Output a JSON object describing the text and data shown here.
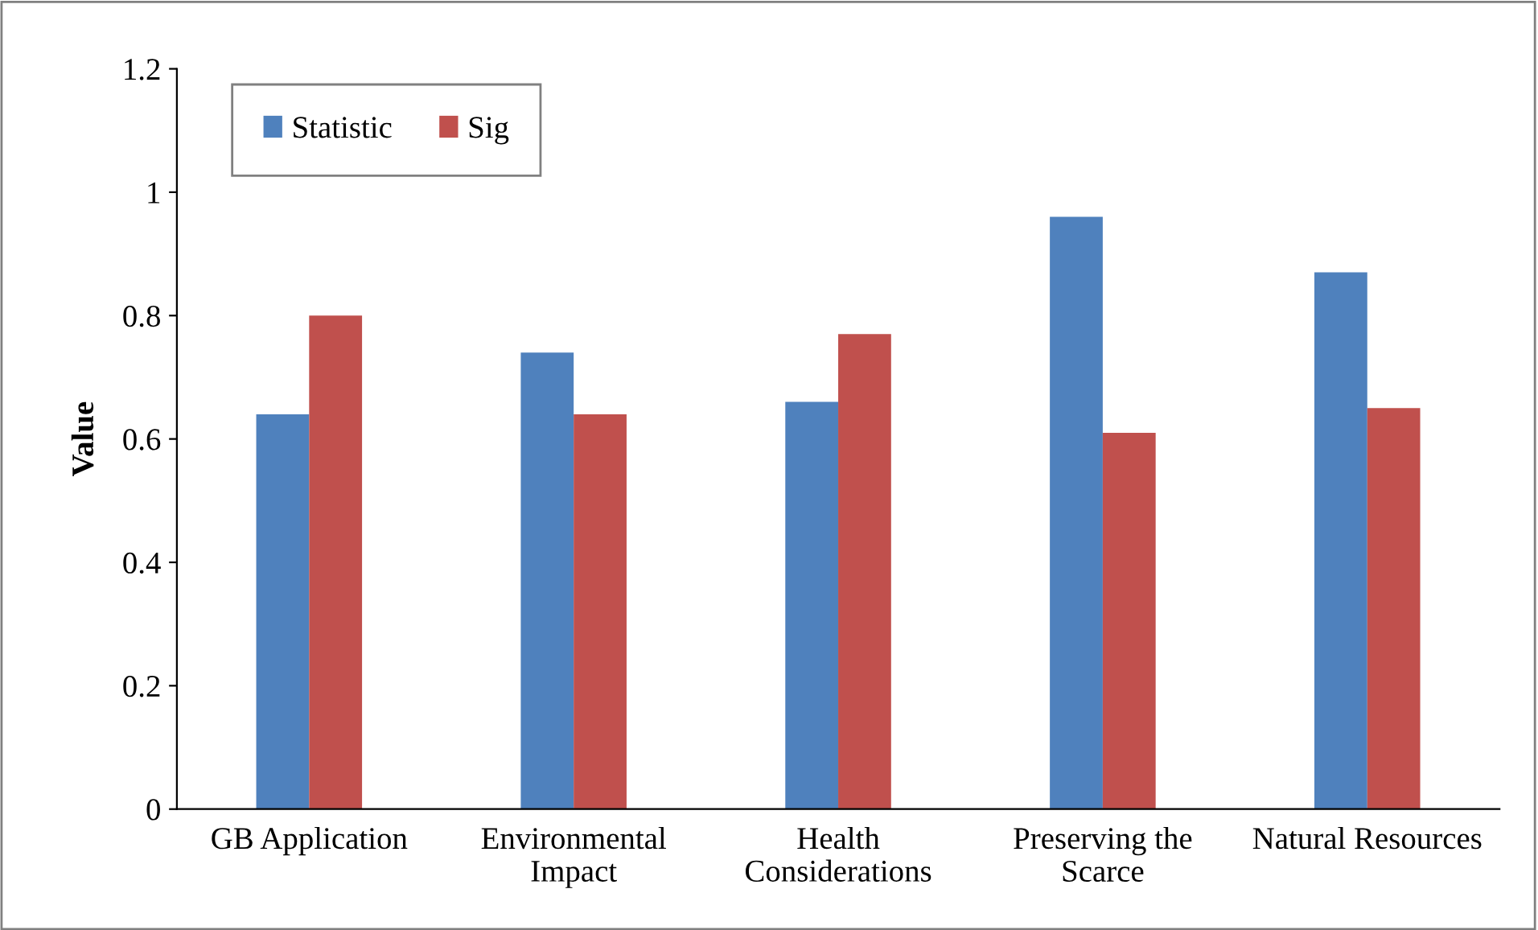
{
  "chart_data": {
    "type": "bar",
    "ylabel": "Value",
    "categories": [
      "GB Application",
      "Environmental Impact",
      "Health Considerations",
      "Preserving the Scarce",
      "Natural Resources"
    ],
    "series": [
      {
        "name": "Statistic",
        "color": "#4f81bd",
        "values": [
          0.64,
          0.74,
          0.66,
          0.96,
          0.87
        ]
      },
      {
        "name": "Sig",
        "color": "#c0504d",
        "values": [
          0.8,
          0.64,
          0.77,
          0.61,
          0.65
        ]
      }
    ],
    "ylim": [
      0,
      1.2
    ],
    "yticks": [
      0,
      0.2,
      0.4,
      0.6,
      0.8,
      1,
      1.2
    ],
    "grid": false,
    "legend": "top left"
  }
}
